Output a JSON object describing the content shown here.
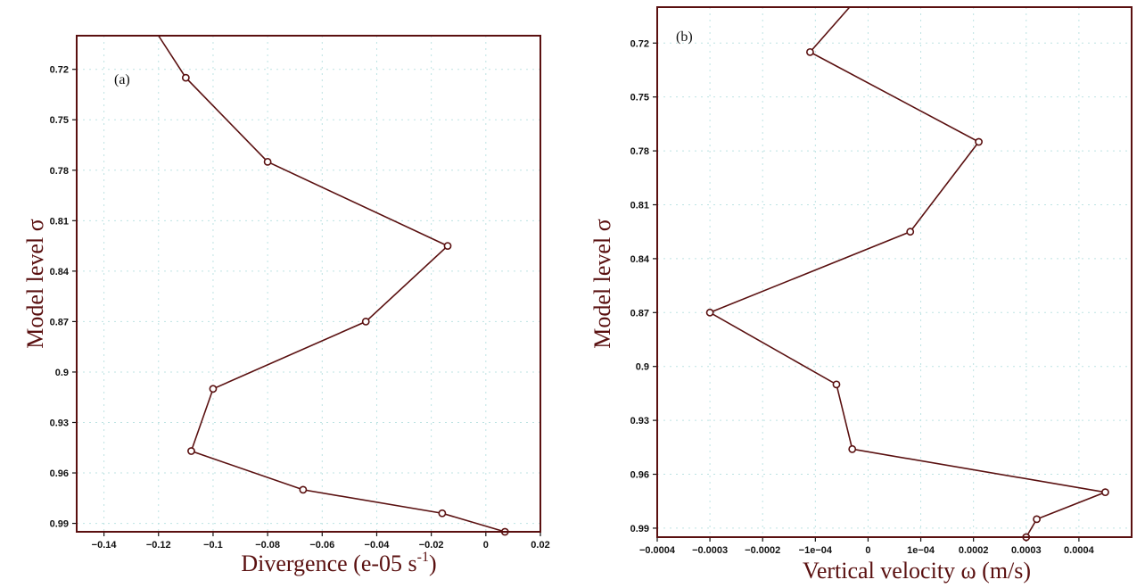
{
  "chart_data": [
    {
      "type": "line",
      "panel_label": "(a)",
      "xlabel": "Divergence (e-05 s",
      "xlabel_sup": "-1",
      "xlabel_tail": ")",
      "ylabel": "Model level σ",
      "xlim": [
        -0.15,
        0.02
      ],
      "ylim": [
        0.7,
        0.995
      ],
      "x_ticks": [
        -0.14,
        -0.12,
        -0.1,
        -0.08,
        -0.06,
        -0.04,
        -0.02,
        0,
        0.02
      ],
      "x_tick_labels": [
        "−0.14",
        "−0.12",
        "−0.1",
        "−0.08",
        "−0.06",
        "−0.04",
        "−0.02",
        "0",
        "0.02"
      ],
      "y_ticks": [
        0.72,
        0.75,
        0.78,
        0.81,
        0.84,
        0.87,
        0.9,
        0.93,
        0.96,
        0.99
      ],
      "y_tick_labels": [
        "0.72",
        "0.75",
        "0.78",
        "0.81",
        "0.84",
        "0.87",
        "0.9",
        "0.93",
        "0.96",
        "0.99"
      ],
      "grid": true,
      "line_color": "#5a1010",
      "points": [
        {
          "x": -0.12,
          "y": 0.7
        },
        {
          "x": -0.11,
          "y": 0.725
        },
        {
          "x": -0.08,
          "y": 0.775
        },
        {
          "x": -0.014,
          "y": 0.825
        },
        {
          "x": -0.044,
          "y": 0.87
        },
        {
          "x": -0.1,
          "y": 0.91
        },
        {
          "x": -0.108,
          "y": 0.947
        },
        {
          "x": -0.067,
          "y": 0.97
        },
        {
          "x": -0.016,
          "y": 0.984
        },
        {
          "x": 0.007,
          "y": 0.995
        }
      ],
      "markers_from_index": 1
    },
    {
      "type": "line",
      "panel_label": "(b)",
      "xlabel": "Vertical velocity ω (m/s)",
      "ylabel": "Model level σ",
      "xlim": [
        -0.0004,
        0.0005
      ],
      "ylim": [
        0.7,
        0.995
      ],
      "x_ticks": [
        -0.0004,
        -0.0003,
        -0.0002,
        -0.0001,
        0,
        0.0001,
        0.0002,
        0.0003,
        0.0004
      ],
      "x_tick_labels": [
        "−0.0004",
        "−0.0003",
        "−0.0002",
        "−1e−04",
        "0",
        "1e−04",
        "0.0002",
        "0.0003",
        "0.0004"
      ],
      "y_ticks": [
        0.72,
        0.75,
        0.78,
        0.81,
        0.84,
        0.87,
        0.9,
        0.93,
        0.96,
        0.99
      ],
      "y_tick_labels": [
        "0.72",
        "0.75",
        "0.78",
        "0.81",
        "0.84",
        "0.87",
        "0.9",
        "0.93",
        "0.96",
        "0.99"
      ],
      "grid": true,
      "line_color": "#5a1010",
      "points": [
        {
          "x": -3.5e-05,
          "y": 0.7
        },
        {
          "x": -0.00011,
          "y": 0.725
        },
        {
          "x": 0.00021,
          "y": 0.775
        },
        {
          "x": 8e-05,
          "y": 0.825
        },
        {
          "x": -0.0003,
          "y": 0.87
        },
        {
          "x": -6e-05,
          "y": 0.91
        },
        {
          "x": -3e-05,
          "y": 0.946
        },
        {
          "x": 0.00045,
          "y": 0.97
        },
        {
          "x": 0.00032,
          "y": 0.985
        },
        {
          "x": 0.0003,
          "y": 0.995
        }
      ],
      "markers_from_index": 1
    }
  ]
}
